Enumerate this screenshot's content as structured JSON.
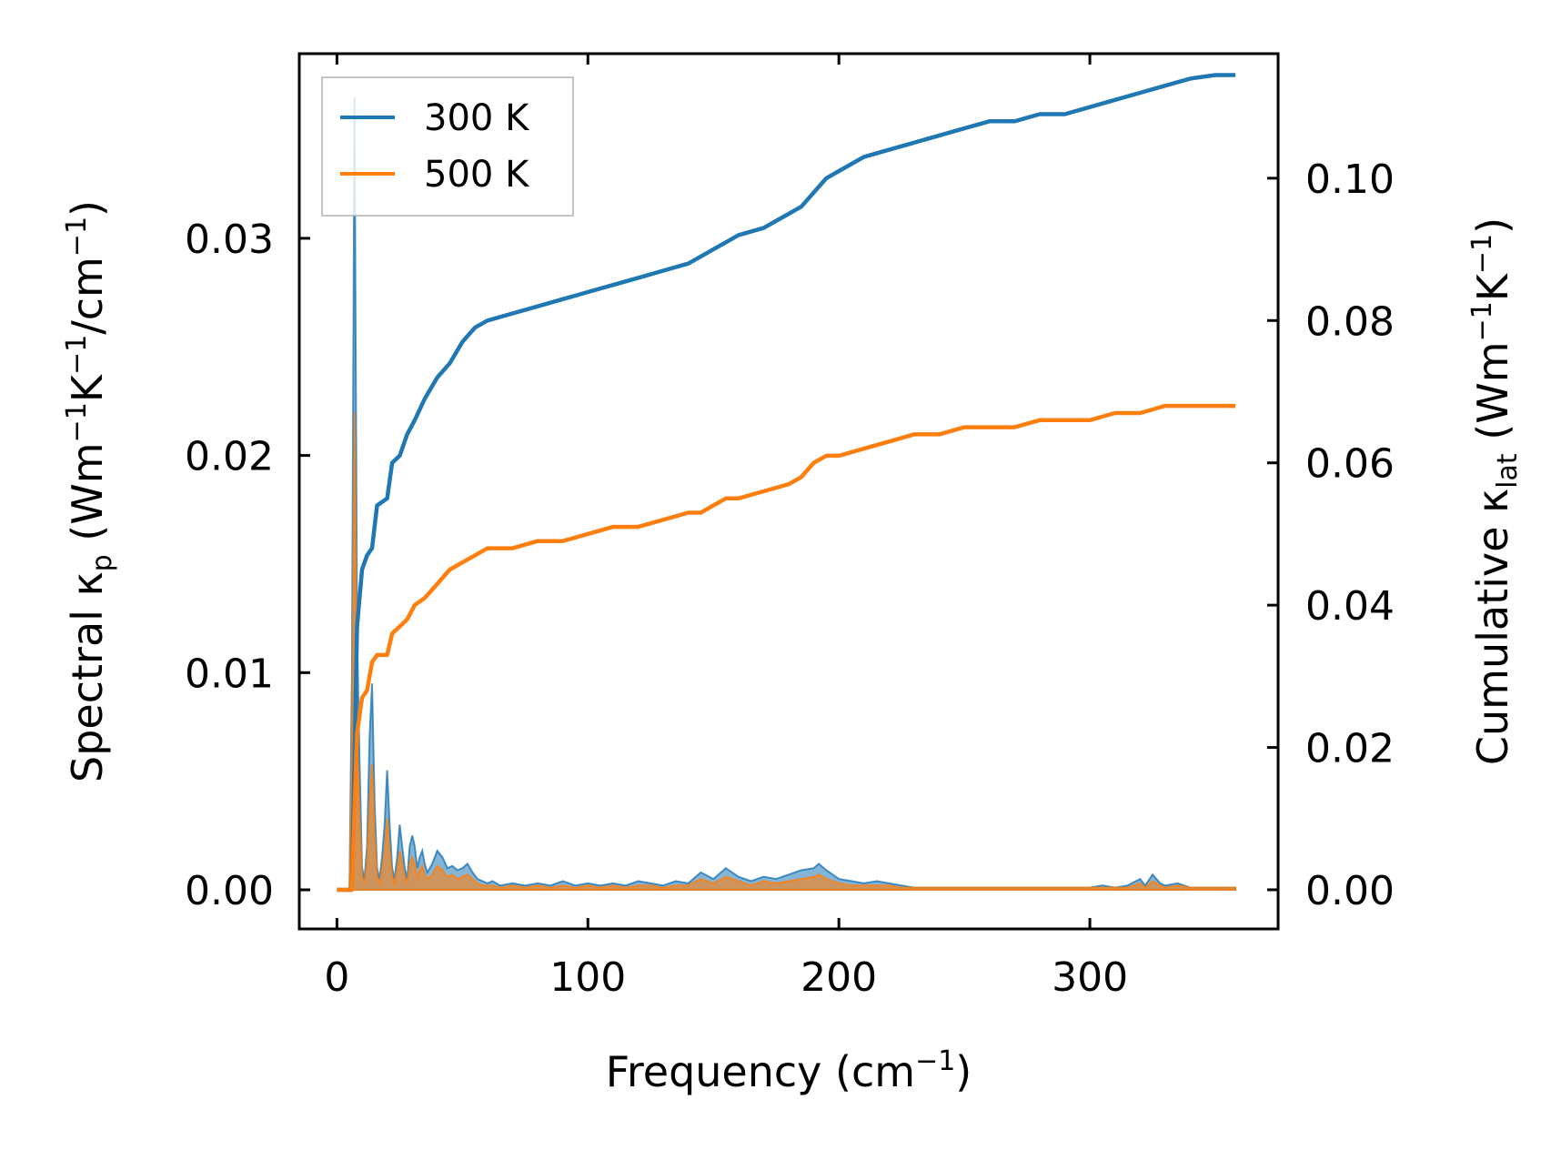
{
  "chart_data": {
    "type": "line",
    "xlabel": "Frequency (cm",
    "xlabel_sup": "−1",
    "xlabel_end": ")",
    "ylabel_left": {
      "pre": "Spectral κ",
      "sub": "p",
      "mid1": " (Wm",
      "sup1": "−1",
      "mid2": "K",
      "sup2": "−1",
      "mid3": "/cm",
      "sup3": "−1",
      "end": ")"
    },
    "ylabel_right": {
      "pre": "Cumulative κ",
      "sub": "lat",
      "mid1": " (Wm",
      "sup1": "−1",
      "mid2": "K",
      "sup2": "−1",
      "end": ")"
    },
    "xlim": [
      -15,
      375
    ],
    "ylim_left": [
      -0.0018,
      0.0385
    ],
    "ylim_right": [
      -0.0055,
      0.1175
    ],
    "xticks": [
      0,
      100,
      200,
      300
    ],
    "xtick_labels": [
      "0",
      "100",
      "200",
      "300"
    ],
    "yticks_left": [
      0.0,
      0.01,
      0.02,
      0.03
    ],
    "ytick_labels_left": [
      "0.00",
      "0.01",
      "0.02",
      "0.03"
    ],
    "yticks_right": [
      0.0,
      0.02,
      0.04,
      0.06,
      0.08,
      0.1
    ],
    "ytick_labels_right": [
      "0.00",
      "0.02",
      "0.04",
      "0.06",
      "0.08",
      "0.10"
    ],
    "legend": {
      "position": "top-left",
      "entries": [
        "300 K",
        "500 K"
      ]
    },
    "colors": {
      "300 K": "#1f77b4",
      "500 K": "#ff7f0e"
    },
    "series": [
      {
        "name": "300 K",
        "role": "cumulative (right axis)",
        "x": [
          0,
          3,
          6,
          8,
          10,
          12,
          14,
          16,
          20,
          22,
          25,
          28,
          31,
          35,
          40,
          45,
          50,
          55,
          60,
          70,
          80,
          90,
          100,
          110,
          120,
          130,
          140,
          145,
          150,
          155,
          160,
          170,
          180,
          185,
          190,
          195,
          200,
          210,
          220,
          230,
          240,
          250,
          260,
          270,
          280,
          290,
          300,
          310,
          320,
          330,
          340,
          350,
          358
        ],
        "values": [
          0,
          0,
          0,
          0.037,
          0.045,
          0.047,
          0.048,
          0.054,
          0.055,
          0.06,
          0.061,
          0.064,
          0.066,
          0.069,
          0.072,
          0.074,
          0.077,
          0.079,
          0.08,
          0.081,
          0.082,
          0.083,
          0.084,
          0.085,
          0.086,
          0.087,
          0.088,
          0.089,
          0.09,
          0.091,
          0.092,
          0.093,
          0.095,
          0.096,
          0.098,
          0.1,
          0.101,
          0.103,
          0.104,
          0.105,
          0.106,
          0.107,
          0.108,
          0.108,
          0.109,
          0.109,
          0.11,
          0.111,
          0.112,
          0.113,
          0.114,
          0.1145,
          0.1145
        ]
      },
      {
        "name": "500 K",
        "role": "cumulative (right axis)",
        "x": [
          0,
          3,
          6,
          8,
          10,
          12,
          14,
          16,
          20,
          22,
          25,
          28,
          31,
          35,
          40,
          45,
          50,
          55,
          60,
          70,
          80,
          90,
          100,
          110,
          120,
          130,
          140,
          145,
          150,
          155,
          160,
          170,
          180,
          185,
          190,
          195,
          200,
          210,
          220,
          230,
          240,
          250,
          260,
          270,
          280,
          290,
          300,
          310,
          320,
          330,
          340,
          350,
          358
        ],
        "values": [
          0,
          0,
          0,
          0.022,
          0.027,
          0.028,
          0.032,
          0.033,
          0.033,
          0.036,
          0.037,
          0.038,
          0.04,
          0.041,
          0.043,
          0.045,
          0.046,
          0.047,
          0.048,
          0.048,
          0.049,
          0.049,
          0.05,
          0.051,
          0.051,
          0.052,
          0.053,
          0.053,
          0.054,
          0.055,
          0.055,
          0.056,
          0.057,
          0.058,
          0.06,
          0.061,
          0.061,
          0.062,
          0.063,
          0.064,
          0.064,
          0.065,
          0.065,
          0.065,
          0.066,
          0.066,
          0.066,
          0.067,
          0.067,
          0.068,
          0.068,
          0.068,
          0.068
        ]
      },
      {
        "name": "300 K spectral",
        "role": "spectral (left axis, filled)",
        "x": [
          0,
          2,
          4,
          5,
          6,
          7,
          8,
          9,
          10,
          11,
          12,
          13,
          14,
          15,
          16,
          17,
          18,
          19,
          20,
          21,
          22,
          23,
          24,
          25,
          26,
          27,
          28,
          29,
          30,
          31,
          32,
          33,
          34,
          35,
          36,
          37,
          38,
          40,
          42,
          44,
          46,
          48,
          50,
          52,
          54,
          56,
          58,
          60,
          62,
          65,
          70,
          75,
          80,
          85,
          90,
          95,
          100,
          105,
          110,
          115,
          120,
          125,
          130,
          135,
          140,
          145,
          150,
          155,
          160,
          165,
          170,
          175,
          180,
          185,
          190,
          192,
          195,
          200,
          205,
          210,
          215,
          220,
          225,
          230,
          240,
          250,
          260,
          270,
          280,
          290,
          300,
          305,
          310,
          315,
          320,
          322,
          325,
          328,
          330,
          335,
          340,
          350,
          358
        ],
        "values": [
          0,
          0,
          0,
          0,
          0.01,
          0.0365,
          0.012,
          0.006,
          0.001,
          0.0005,
          0.002,
          0.007,
          0.0095,
          0.004,
          0.001,
          0.0005,
          0.0015,
          0.003,
          0.0055,
          0.003,
          0.001,
          0.0005,
          0.0015,
          0.003,
          0.002,
          0.001,
          0.0005,
          0.002,
          0.0025,
          0.002,
          0.001,
          0.0015,
          0.0018,
          0.0012,
          0.0008,
          0.001,
          0.0012,
          0.0018,
          0.0015,
          0.001,
          0.0011,
          0.0009,
          0.001,
          0.0012,
          0.0008,
          0.0005,
          0.0004,
          0.0003,
          0.0004,
          0.0002,
          0.0003,
          0.0002,
          0.0003,
          0.0002,
          0.0004,
          0.0002,
          0.0003,
          0.0002,
          0.0003,
          0.0002,
          0.0004,
          0.0003,
          0.0002,
          0.0004,
          0.0003,
          0.0008,
          0.0005,
          0.001,
          0.0006,
          0.0004,
          0.0006,
          0.0005,
          0.0007,
          0.0009,
          0.001,
          0.0012,
          0.0009,
          0.0005,
          0.0004,
          0.0003,
          0.0004,
          0.0003,
          0.0002,
          0.0001,
          0.0001,
          0.0001,
          0.0001,
          0.0001,
          0.0001,
          0.0001,
          0.0001,
          0.0002,
          0.0001,
          0.0002,
          0.0005,
          0.0002,
          0.0007,
          0.0003,
          0.0002,
          0.0003,
          0.0001,
          0.0001,
          0.0001
        ]
      },
      {
        "name": "500 K spectral",
        "role": "spectral (left axis, filled)",
        "x": [
          0,
          2,
          4,
          5,
          6,
          7,
          8,
          9,
          10,
          11,
          12,
          13,
          14,
          15,
          16,
          17,
          18,
          19,
          20,
          21,
          22,
          23,
          24,
          25,
          26,
          27,
          28,
          29,
          30,
          31,
          32,
          33,
          34,
          35,
          36,
          37,
          38,
          40,
          42,
          44,
          46,
          48,
          50,
          52,
          54,
          56,
          58,
          60,
          62,
          65,
          70,
          75,
          80,
          85,
          90,
          95,
          100,
          105,
          110,
          115,
          120,
          125,
          130,
          135,
          140,
          145,
          150,
          155,
          160,
          165,
          170,
          175,
          180,
          185,
          190,
          192,
          195,
          200,
          205,
          210,
          215,
          220,
          225,
          230,
          240,
          250,
          260,
          270,
          280,
          290,
          300,
          305,
          310,
          315,
          320,
          322,
          325,
          328,
          330,
          335,
          340,
          350,
          358
        ],
        "values": [
          0,
          0,
          0,
          0,
          0.006,
          0.022,
          0.007,
          0.0035,
          0.0006,
          0.0003,
          0.0012,
          0.004,
          0.0058,
          0.0025,
          0.0006,
          0.0003,
          0.0009,
          0.0018,
          0.0033,
          0.0018,
          0.0006,
          0.0003,
          0.0009,
          0.0018,
          0.0012,
          0.0006,
          0.0003,
          0.0012,
          0.0015,
          0.0012,
          0.0006,
          0.0009,
          0.0011,
          0.0007,
          0.0005,
          0.0006,
          0.0007,
          0.0011,
          0.0009,
          0.0006,
          0.0007,
          0.0005,
          0.0006,
          0.0007,
          0.0005,
          0.0003,
          0.0002,
          0.0002,
          0.0002,
          0.0001,
          0.0002,
          0.0001,
          0.0002,
          0.0001,
          0.0002,
          0.0001,
          0.0002,
          0.0001,
          0.0002,
          0.0001,
          0.0002,
          0.0002,
          0.0001,
          0.0002,
          0.0002,
          0.0005,
          0.0003,
          0.0006,
          0.0004,
          0.0002,
          0.0004,
          0.0003,
          0.0004,
          0.0005,
          0.0006,
          0.0007,
          0.0005,
          0.0003,
          0.0002,
          0.0002,
          0.0002,
          0.0002,
          0.0001,
          0.0001,
          0.0001,
          0.0001,
          0.0001,
          0.0001,
          0.0001,
          0.0001,
          0.0001,
          0.0001,
          0.0001,
          0.0001,
          0.0003,
          0.0001,
          0.0004,
          0.0002,
          0.0001,
          0.0002,
          0.0001,
          0.0001,
          0.0001
        ]
      }
    ]
  }
}
